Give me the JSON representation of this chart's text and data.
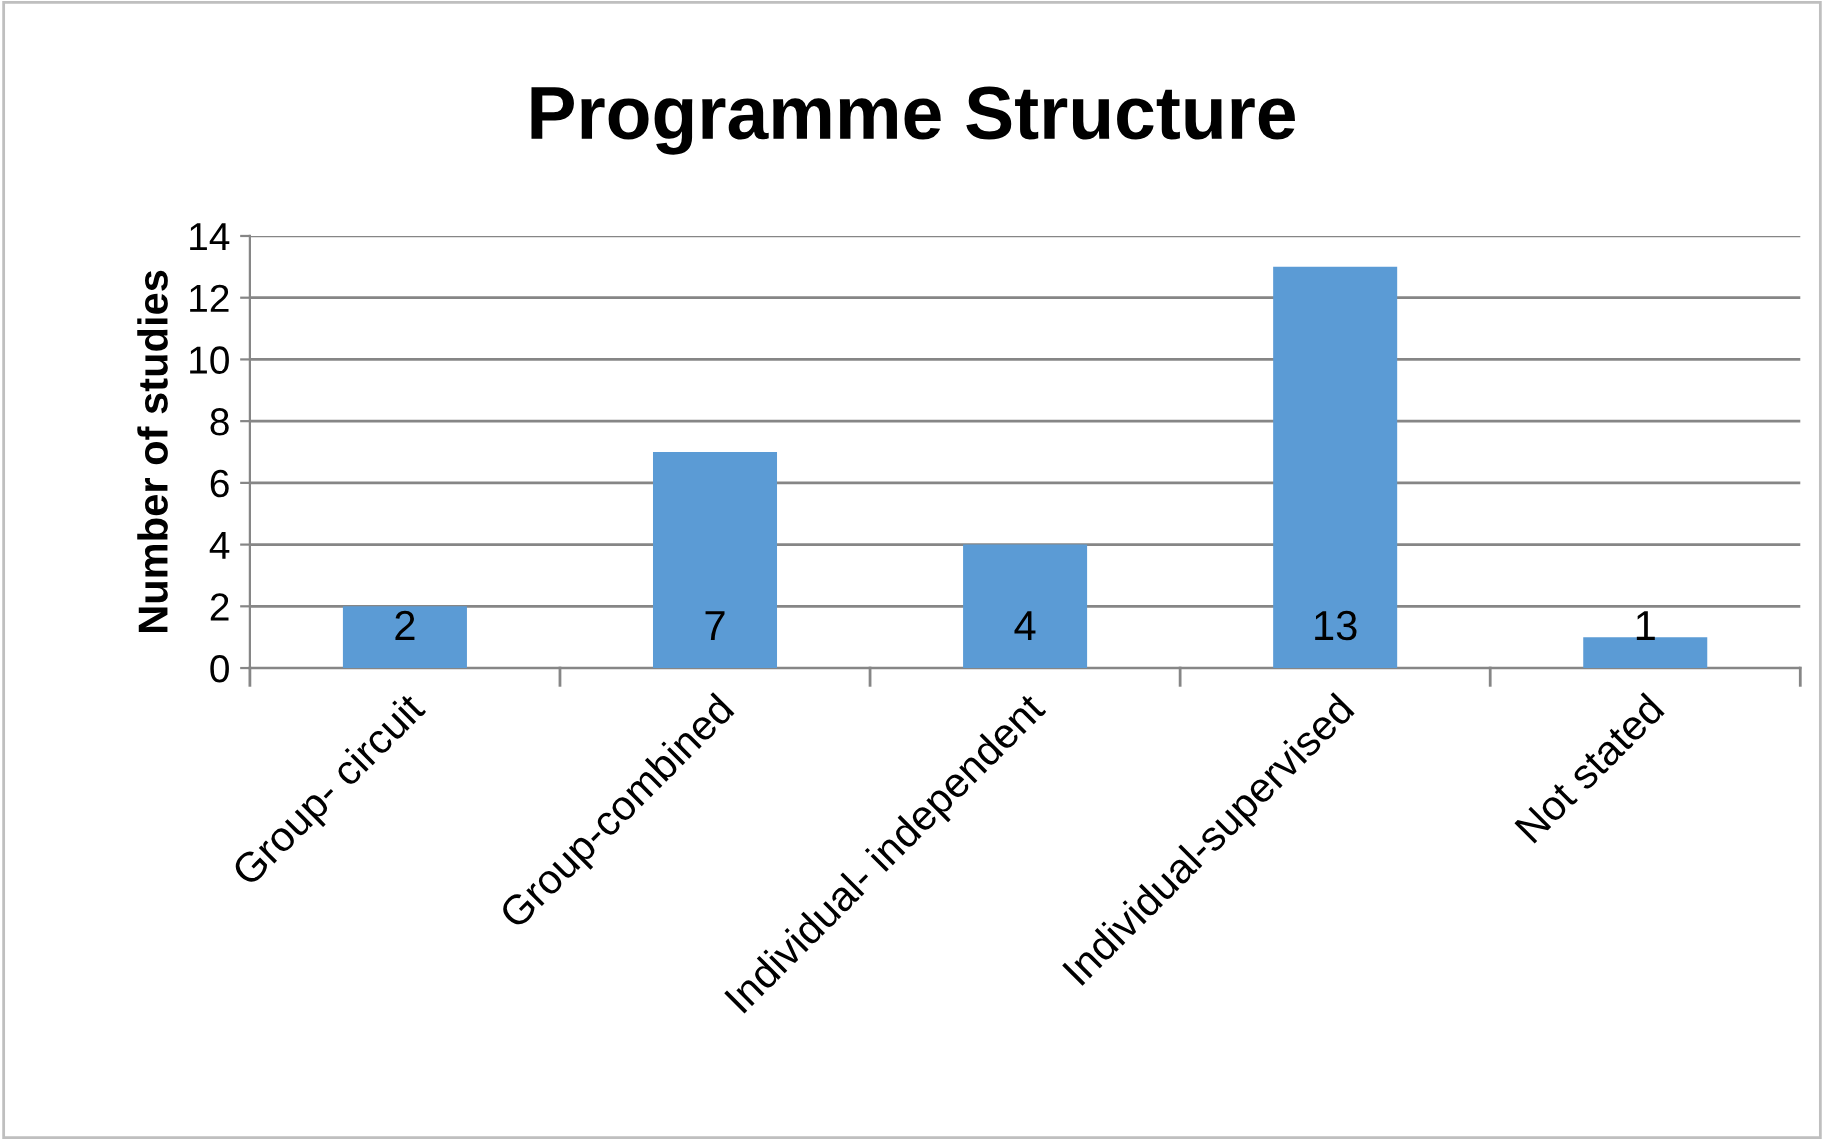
{
  "chart_data": {
    "type": "bar",
    "title": "Programme Structure",
    "ylabel": "Number of studies",
    "categories": [
      "Group- circuit",
      "Group-combined",
      "Individual- independent",
      "Individual-supervised",
      "Not stated"
    ],
    "values": [
      2,
      7,
      4,
      13,
      1
    ],
    "color": "#5b9bd5",
    "ylim": [
      0,
      14
    ],
    "yticks": [
      0,
      2,
      4,
      6,
      8,
      10,
      12,
      14
    ],
    "grid": "y",
    "data_labels": true,
    "legend": false
  }
}
